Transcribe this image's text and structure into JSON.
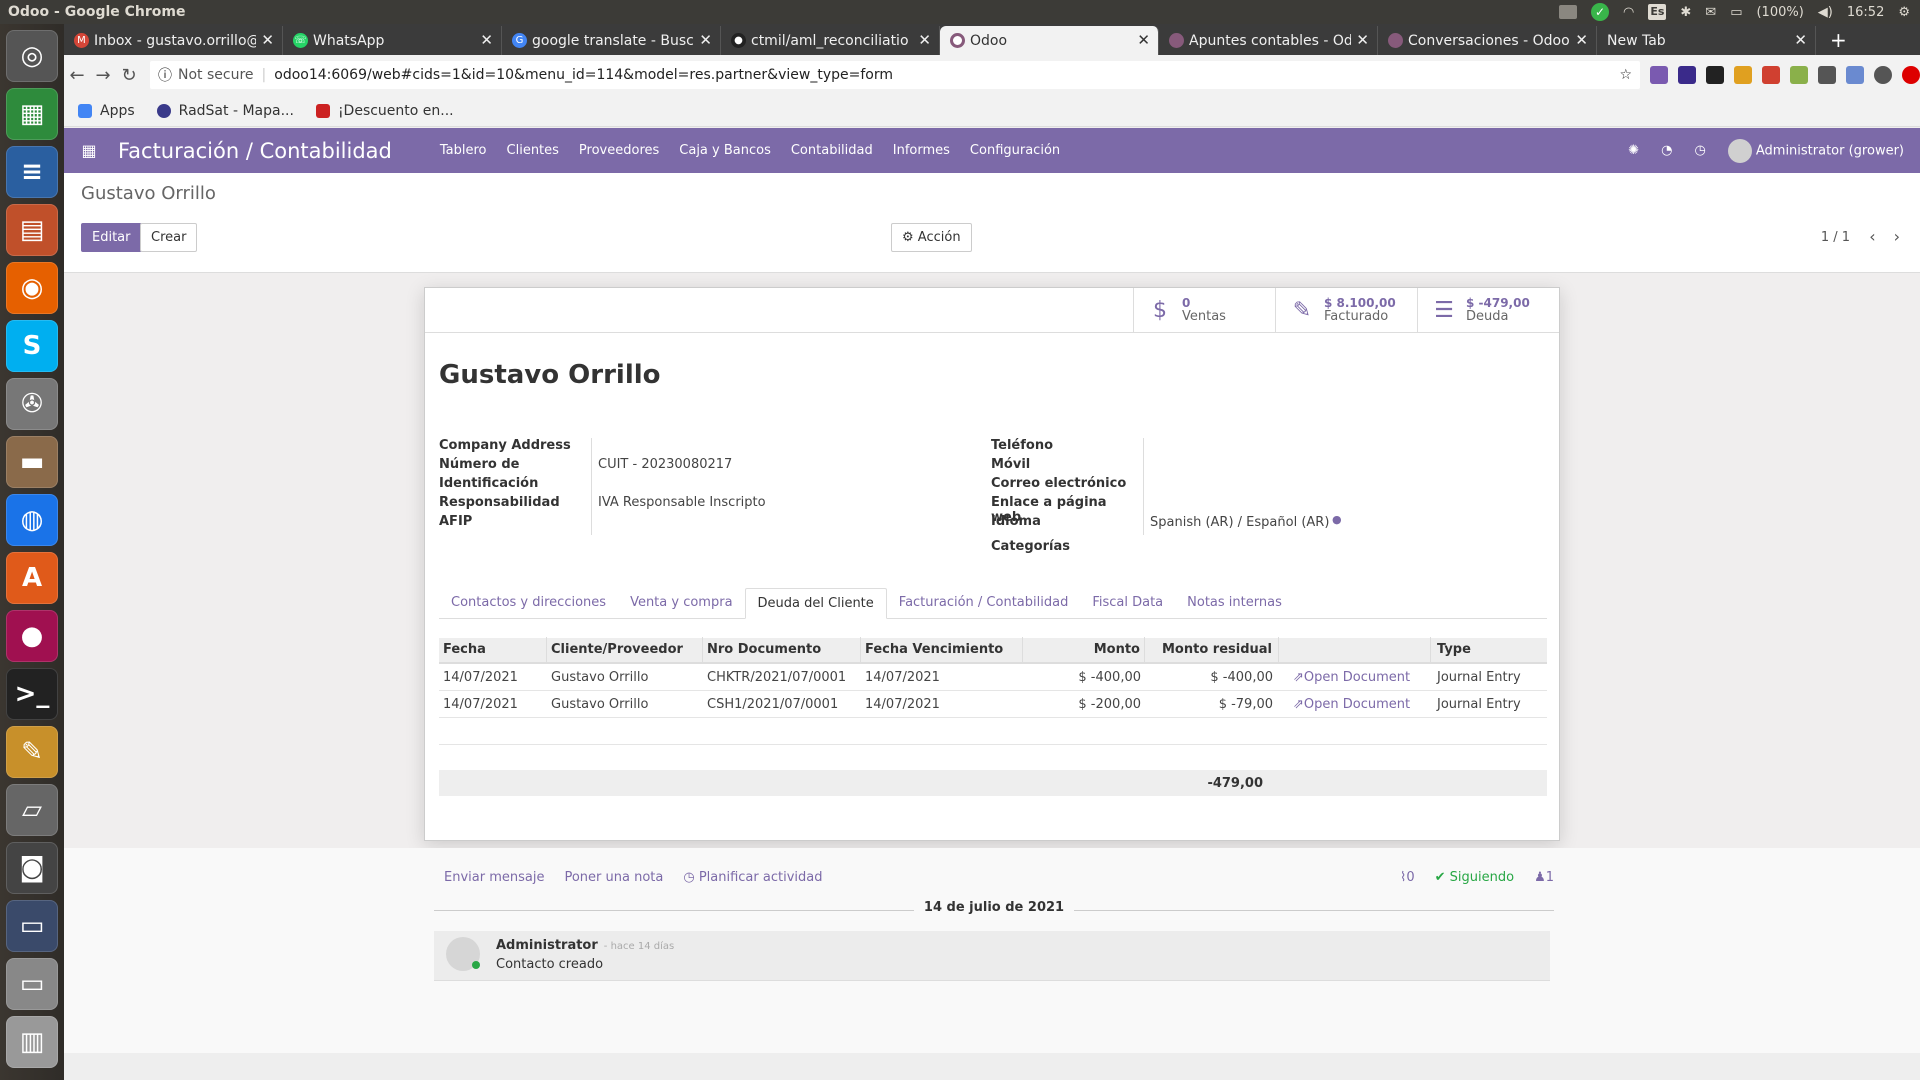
{
  "os": {
    "window_title": "Odoo - Google Chrome",
    "battery": "(100%)",
    "clock": "16:52",
    "lang": "Es"
  },
  "browser": {
    "tabs": [
      {
        "label": "Inbox - gustavo.orrillo@",
        "favicon": "gmail-icon",
        "color": "#d44638"
      },
      {
        "label": "WhatsApp",
        "favicon": "whatsapp-icon",
        "color": "#25d366"
      },
      {
        "label": "google translate - Busca",
        "favicon": "google-icon",
        "color": "#4285f4"
      },
      {
        "label": "ctmil/aml_reconciliatio",
        "favicon": "github-icon",
        "color": "#222222"
      },
      {
        "label": "Odoo",
        "favicon": "odoo-icon",
        "color": "#875a7b"
      },
      {
        "label": "Apuntes contables - Od",
        "favicon": "odoo-icon",
        "color": "#875a7b"
      },
      {
        "label": "Conversaciones - Odoo",
        "favicon": "odoo-icon",
        "color": "#875a7b"
      },
      {
        "label": "New Tab",
        "favicon": "",
        "color": ""
      }
    ],
    "active_tab": 4,
    "security": "Not secure",
    "url": "odoo14:6069/web#cids=1&id=10&menu_id=114&model=res.partner&view_type=form",
    "bookmarks": [
      {
        "label": "Apps",
        "color": "#4285f4"
      },
      {
        "label": "RadSat - Mapa...",
        "color": "#3a3a8a"
      },
      {
        "label": "¡Descuento en...",
        "color": "#cc2222"
      }
    ]
  },
  "odoo": {
    "app_title": "Facturación / Contabilidad",
    "menu": [
      "Tablero",
      "Clientes",
      "Proveedores",
      "Caja y Bancos",
      "Contabilidad",
      "Informes",
      "Configuración"
    ],
    "user": "Administrator (grower)",
    "breadcrumb": "Gustavo Orrillo",
    "buttons": {
      "edit": "Editar",
      "create": "Crear",
      "action": "Acción"
    },
    "pager": "1 / 1",
    "stats": [
      {
        "value": "0",
        "label": "Ventas",
        "icon": "dollar-icon"
      },
      {
        "value": "$ 8.100,00",
        "label": "Facturado",
        "icon": "edit-icon"
      },
      {
        "value": "$ -479,00",
        "label": "Deuda",
        "icon": "list-icon"
      }
    ],
    "partner_name": "Gustavo Orrillo",
    "left_fields": {
      "company_address_label": "Company Address",
      "id_number_label_1": "Número de",
      "id_number_label_2": "Identificación",
      "id_number_value": "CUIT - 20230080217",
      "afip_label_1": "Responsabilidad",
      "afip_label_2": "AFIP",
      "afip_value": "IVA Responsable Inscripto"
    },
    "right_fields": {
      "phone_label": "Teléfono",
      "mobile_label": "Móvil",
      "email_label": "Correo electrónico",
      "website_label": "Enlace a página web",
      "language_label": "Idioma",
      "language_value": "Spanish (AR) / Español (AR)",
      "categories_label": "Categorías"
    },
    "tabs": [
      "Contactos y direcciones",
      "Venta y compra",
      "Deuda del Cliente",
      "Facturación / Contabilidad",
      "Fiscal Data",
      "Notas internas"
    ],
    "active_tab": 2,
    "debt_table": {
      "columns": [
        "Fecha",
        "Cliente/Proveedor",
        "Nro Documento",
        "Fecha Vencimiento",
        "Monto",
        "Monto residual",
        "",
        "Type"
      ],
      "rows": [
        {
          "date": "14/07/2021",
          "partner": "Gustavo Orrillo",
          "doc": "CHKTR/2021/07/0001",
          "due": "14/07/2021",
          "amount": "$ -400,00",
          "residual": "$ -400,00",
          "link": "Open Document",
          "type": "Journal Entry"
        },
        {
          "date": "14/07/2021",
          "partner": "Gustavo Orrillo",
          "doc": "CSH1/2021/07/0001",
          "due": "14/07/2021",
          "amount": "$ -200,00",
          "residual": "$ -79,00",
          "link": "Open Document",
          "type": "Journal Entry"
        }
      ],
      "total": "-479,00"
    },
    "chatter": {
      "send_message": "Enviar mensaje",
      "log_note": "Poner una nota",
      "schedule": "Planificar actividad",
      "attachments": "0",
      "following": "Siguiendo",
      "followers": "1",
      "date_separator": "14 de julio de 2021",
      "message": {
        "author": "Administrator",
        "when": "- hace 14 días",
        "body": "Contacto creado"
      }
    }
  }
}
